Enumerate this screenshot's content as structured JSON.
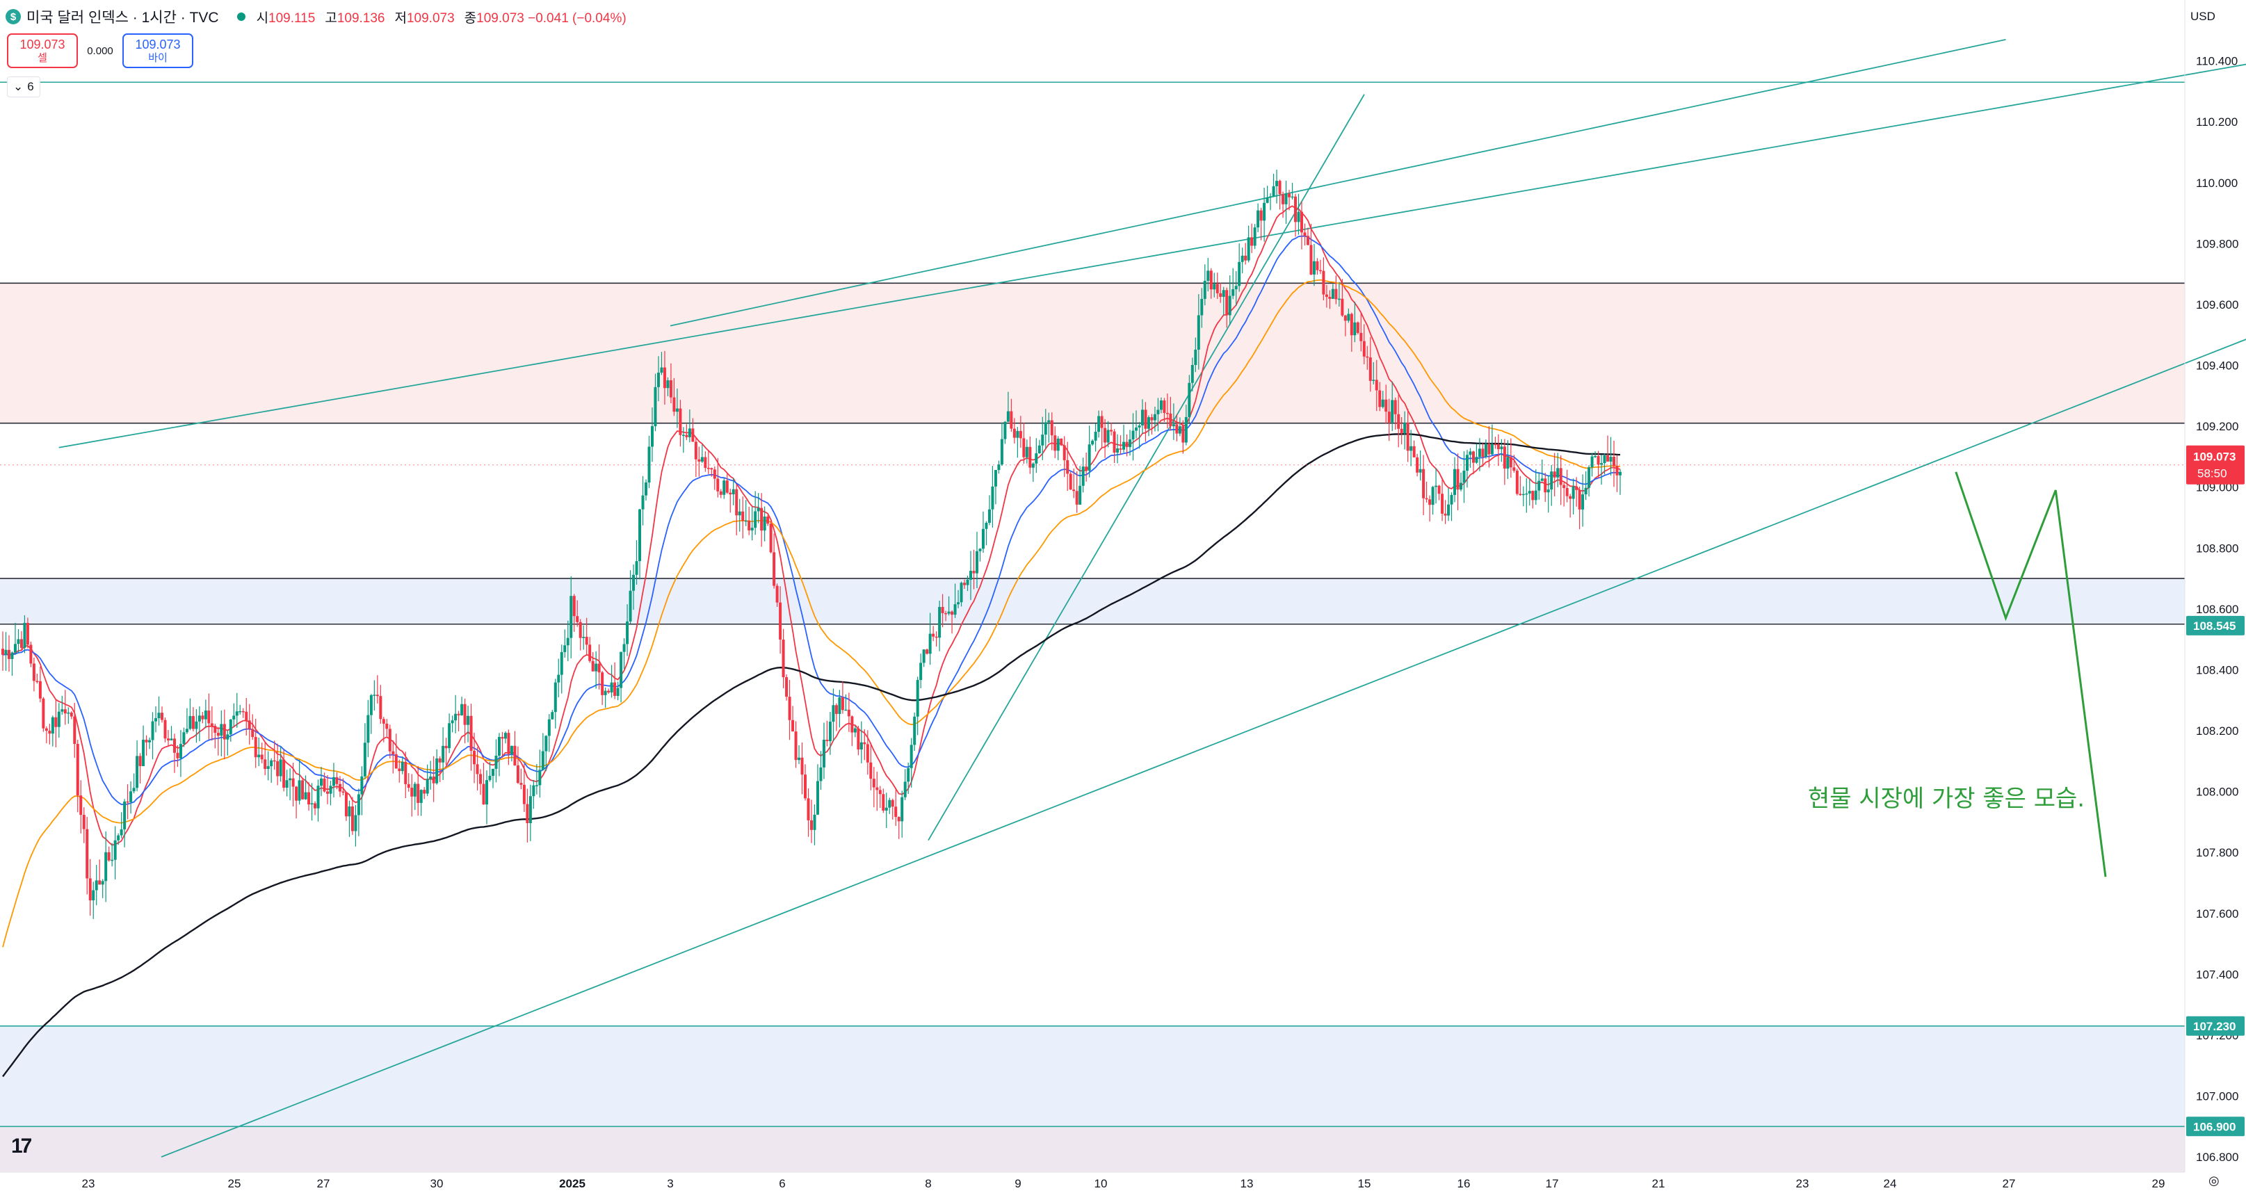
{
  "header": {
    "symbol_badge": "$",
    "title": "미국 달러 인덱스 · 1시간 · TVC",
    "ohlc": [
      {
        "label": "시",
        "value": "109.115"
      },
      {
        "label": "고",
        "value": "109.136"
      },
      {
        "label": "저",
        "value": "109.073"
      },
      {
        "label": "종",
        "value": "109.073 −0.041 (−0.04%)"
      }
    ]
  },
  "trade": {
    "sell_price": "109.073",
    "sell_label": "셀",
    "spread": "0.000",
    "buy_price": "109.073",
    "buy_label": "바이"
  },
  "indicator_count": "6",
  "currency": "USD",
  "icons": {
    "logo": "tradingview-logo-icon",
    "settings": "settings-icon",
    "toggle": "chevron-down-icon"
  },
  "colors": {
    "up": "#089981",
    "down": "#f23645",
    "ema_fast": "#f23645",
    "ema_mid": "#2962ff",
    "ema_slow": "#ff9800",
    "ema_long": "#131722",
    "trendline": "#26a69a",
    "projection": "#2e9e3a",
    "resistance_zone": "#fdecec",
    "support_zone": "#eaeffc"
  },
  "chart_data": {
    "type": "candlestick",
    "title": "미국 달러 인덱스 · 1시간 · TVC",
    "ylim": [
      106.75,
      110.6
    ],
    "y_ticks": [
      "110.400",
      "110.200",
      "110.000",
      "109.800",
      "109.600",
      "109.400",
      "109.200",
      "109.000",
      "108.800",
      "108.600",
      "108.400",
      "108.200",
      "108.000",
      "107.800",
      "107.600",
      "107.400",
      "107.200",
      "107.000",
      "106.800"
    ],
    "x_ticks": [
      "23",
      "25",
      "27",
      "30",
      "2025",
      "3",
      "6",
      "8",
      "9",
      "10",
      "13",
      "15",
      "16",
      "17",
      "21",
      "23",
      "24",
      "27",
      "29"
    ],
    "last_price": "109.073",
    "countdown": "58:50",
    "price_tags": [
      {
        "value": 108.545,
        "text": "108.545"
      },
      {
        "value": 107.23,
        "text": "107.230"
      },
      {
        "value": 106.9,
        "text": "106.900"
      }
    ],
    "anchors": [
      [
        0,
        108.45
      ],
      [
        1.5,
        108.52
      ],
      [
        2,
        108.2
      ],
      [
        3,
        108.3
      ],
      [
        4,
        107.65
      ],
      [
        5,
        107.8
      ],
      [
        6,
        108.05
      ],
      [
        7,
        108.25
      ],
      [
        8,
        108.15
      ],
      [
        9,
        108.25
      ],
      [
        10,
        108.2
      ],
      [
        11,
        108.23
      ],
      [
        12,
        108.1
      ],
      [
        13,
        108.05
      ],
      [
        14,
        107.95
      ],
      [
        15,
        108.05
      ],
      [
        16,
        107.9
      ],
      [
        16.5,
        108.35
      ],
      [
        17.5,
        108.1
      ],
      [
        18.5,
        108.0
      ],
      [
        20,
        108.1
      ],
      [
        21,
        108.3
      ],
      [
        22,
        108.0
      ],
      [
        23,
        108.2
      ],
      [
        24,
        107.9
      ],
      [
        25,
        108.2
      ],
      [
        26,
        108.6
      ],
      [
        27,
        108.4
      ],
      [
        28,
        108.3
      ],
      [
        29,
        108.8
      ],
      [
        30,
        109.4
      ],
      [
        31,
        109.2
      ],
      [
        32,
        109.1
      ],
      [
        33,
        109.0
      ],
      [
        34,
        108.9
      ],
      [
        35,
        108.9
      ],
      [
        36,
        108.2
      ],
      [
        37,
        107.9
      ],
      [
        38,
        108.3
      ],
      [
        39,
        108.2
      ],
      [
        40,
        108.0
      ],
      [
        41,
        107.9
      ],
      [
        42,
        108.4
      ],
      [
        43,
        108.6
      ],
      [
        44,
        108.65
      ],
      [
        45,
        108.9
      ],
      [
        46,
        109.25
      ],
      [
        47,
        109.1
      ],
      [
        48,
        109.2
      ],
      [
        49,
        108.95
      ],
      [
        50,
        109.2
      ],
      [
        51,
        109.15
      ],
      [
        52,
        109.2
      ],
      [
        53,
        109.3
      ],
      [
        54,
        109.15
      ],
      [
        55,
        109.7
      ],
      [
        56,
        109.6
      ],
      [
        57,
        109.8
      ],
      [
        58,
        110.0
      ],
      [
        59,
        109.95
      ],
      [
        60,
        109.7
      ],
      [
        61,
        109.6
      ],
      [
        62,
        109.5
      ],
      [
        63,
        109.3
      ],
      [
        64,
        109.2
      ],
      [
        65,
        109.0
      ],
      [
        66,
        108.95
      ],
      [
        67,
        109.1
      ],
      [
        68,
        109.15
      ],
      [
        69,
        109.05
      ],
      [
        70,
        108.95
      ],
      [
        71,
        109.05
      ],
      [
        72,
        108.95
      ],
      [
        73,
        109.1
      ],
      [
        74,
        109.05
      ]
    ],
    "moving_averages": [
      {
        "type": "ema",
        "period": 12,
        "color": "#f23645"
      },
      {
        "type": "ema",
        "period": 26,
        "color": "#2962ff"
      },
      {
        "type": "ema",
        "period": 50,
        "color": "#ff9800"
      },
      {
        "type": "ema",
        "period": 200,
        "color": "#131722"
      }
    ],
    "horizontal_lines": [
      110.33,
      109.67,
      109.21,
      108.7,
      108.55,
      107.23,
      106.9
    ],
    "zones": [
      {
        "from": 109.21,
        "to": 109.67,
        "kind": "resistance"
      },
      {
        "from": 108.55,
        "to": 108.7,
        "kind": "support"
      },
      {
        "from": 106.9,
        "to": 107.23,
        "kind": "support"
      },
      {
        "from": 106.75,
        "to": 106.9,
        "kind": "lower"
      }
    ],
    "trendlines": [
      {
        "from": [
          "2024-12-22",
          109.13
        ],
        "to": [
          "2025-01-29",
          110.48
        ]
      },
      {
        "from": [
          "2025-01-03",
          109.53
        ],
        "to": [
          "2025-01-21",
          110.47
        ]
      },
      {
        "from": [
          "2024-12-24",
          106.8
        ],
        "to": [
          "2025-01-29",
          109.69
        ]
      },
      {
        "from": [
          "2025-01-08",
          107.84
        ],
        "to": [
          "2025-01-14",
          110.29
        ]
      }
    ],
    "projection": {
      "points": [
        [
          "2025-01-20",
          109.05
        ],
        [
          "2025-01-21",
          108.57
        ],
        [
          "2025-01-22",
          108.99
        ],
        [
          "2025-01-23",
          107.72
        ]
      ],
      "annotation": "현물 시장에 가장 좋은 모습."
    }
  }
}
